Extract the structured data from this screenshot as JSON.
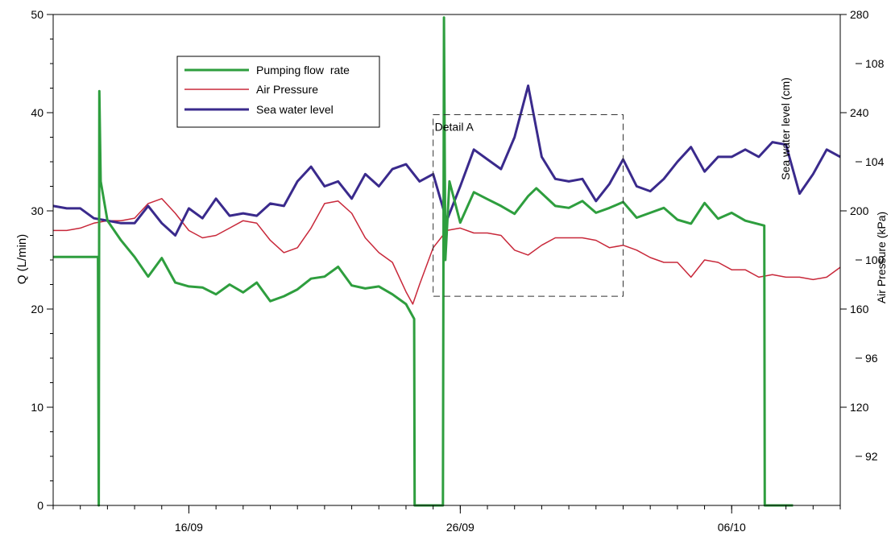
{
  "chart_data": {
    "type": "line",
    "x_axis": {
      "type": "date",
      "range": [
        "2010-09-11",
        "2010-10-10"
      ],
      "tick_labels": [
        {
          "date": "2010-09-16",
          "label": "16/09"
        },
        {
          "date": "2010-09-26",
          "label": "26/09"
        },
        {
          "date": "2010-10-06",
          "label": "06/10"
        }
      ],
      "minor_ticks": "daily"
    },
    "y_left": {
      "label": "Q (L/min)",
      "range": [
        0,
        50
      ],
      "ticks": [
        0,
        10,
        20,
        30,
        40,
        50
      ]
    },
    "y_right_inner": {
      "label": "Sea water level (cm)",
      "range": [
        80,
        280
      ],
      "ticks": [
        120,
        160,
        200,
        240,
        280
      ]
    },
    "y_right_outer": {
      "label": "Air Pressure (kPa)",
      "range": [
        90,
        110
      ],
      "ticks": [
        92,
        96,
        100,
        104,
        108
      ]
    },
    "legend": {
      "position": "top-left"
    },
    "annotation": {
      "label": "Detail A",
      "x_range": [
        "2010-09-25",
        "2010-10-02"
      ],
      "y_range_left": [
        21.3,
        39.8
      ]
    },
    "series": [
      {
        "name": "Pumping flow  rate",
        "axis": "y_left",
        "color": "#2e9e3e",
        "points": [
          [
            "2010-09-11 00:00",
            25.3
          ],
          [
            "2010-09-12 15:36",
            25.3
          ],
          [
            "2010-09-12 16:19",
            0
          ],
          [
            "2010-09-12 16:48",
            42.2
          ],
          [
            "2010-09-12 18:00",
            33.0
          ],
          [
            "2010-09-13 00:00",
            29.0
          ],
          [
            "2010-09-13 12:00",
            27.0
          ],
          [
            "2010-09-14 00:00",
            25.3
          ],
          [
            "2010-09-14 12:00",
            23.3
          ],
          [
            "2010-09-15 00:00",
            25.2
          ],
          [
            "2010-09-15 12:00",
            22.7
          ],
          [
            "2010-09-16 00:00",
            22.3
          ],
          [
            "2010-09-16 12:00",
            22.2
          ],
          [
            "2010-09-17 00:00",
            21.5
          ],
          [
            "2010-09-17 12:00",
            22.5
          ],
          [
            "2010-09-18 00:00",
            21.7
          ],
          [
            "2010-09-18 12:00",
            22.7
          ],
          [
            "2010-09-19 00:00",
            20.8
          ],
          [
            "2010-09-19 12:00",
            21.3
          ],
          [
            "2010-09-20 00:00",
            22.0
          ],
          [
            "2010-09-20 12:00",
            23.1
          ],
          [
            "2010-09-21 00:00",
            23.3
          ],
          [
            "2010-09-21 12:00",
            24.3
          ],
          [
            "2010-09-22 00:00",
            22.4
          ],
          [
            "2010-09-22 12:00",
            22.1
          ],
          [
            "2010-09-23 00:00",
            22.3
          ],
          [
            "2010-09-23 12:00",
            21.5
          ],
          [
            "2010-09-24 00:00",
            20.5
          ],
          [
            "2010-09-24 07:12",
            19.0
          ],
          [
            "2010-09-24 07:40",
            0
          ],
          [
            "2010-09-25 08:38",
            0
          ],
          [
            "2010-09-25 09:36",
            49.7
          ],
          [
            "2010-09-25 10:48",
            25.0
          ],
          [
            "2010-09-25 14:24",
            33.0
          ],
          [
            "2010-09-26 00:00",
            28.8
          ],
          [
            "2010-09-26 12:00",
            31.9
          ],
          [
            "2010-09-27 00:00",
            31.2
          ],
          [
            "2010-09-27 12:00",
            30.5
          ],
          [
            "2010-09-28 00:00",
            29.7
          ],
          [
            "2010-09-28 12:00",
            31.5
          ],
          [
            "2010-09-28 19:12",
            32.3
          ],
          [
            "2010-09-29 12:00",
            30.5
          ],
          [
            "2010-09-30 00:00",
            30.3
          ],
          [
            "2010-09-30 12:00",
            31.0
          ],
          [
            "2010-10-01 00:00",
            29.8
          ],
          [
            "2010-10-01 12:00",
            30.3
          ],
          [
            "2010-10-02 00:00",
            30.9
          ],
          [
            "2010-10-02 12:00",
            29.3
          ],
          [
            "2010-10-03 00:00",
            29.8
          ],
          [
            "2010-10-03 12:00",
            30.3
          ],
          [
            "2010-10-04 00:00",
            29.1
          ],
          [
            "2010-10-04 12:00",
            28.7
          ],
          [
            "2010-10-05 00:00",
            30.8
          ],
          [
            "2010-10-05 12:00",
            29.2
          ],
          [
            "2010-10-06 00:00",
            29.8
          ],
          [
            "2010-10-06 12:00",
            29.0
          ],
          [
            "2010-10-07 04:48",
            28.5
          ],
          [
            "2010-10-07 05:17",
            0
          ],
          [
            "2010-10-08 06:14",
            0
          ]
        ]
      },
      {
        "name": "Air Pressure",
        "axis": "y_right_outer",
        "color": "#c8283a",
        "points": [
          [
            "2010-09-11 00:00",
            101.2
          ],
          [
            "2010-09-11 12:00",
            101.2
          ],
          [
            "2010-09-12 00:00",
            101.3
          ],
          [
            "2010-09-12 12:00",
            101.5
          ],
          [
            "2010-09-13 00:00",
            101.6
          ],
          [
            "2010-09-13 12:00",
            101.6
          ],
          [
            "2010-09-14 00:00",
            101.7
          ],
          [
            "2010-09-14 12:00",
            102.3
          ],
          [
            "2010-09-15 00:00",
            102.5
          ],
          [
            "2010-09-15 12:00",
            101.9
          ],
          [
            "2010-09-16 00:00",
            101.2
          ],
          [
            "2010-09-16 12:00",
            100.9
          ],
          [
            "2010-09-17 00:00",
            101.0
          ],
          [
            "2010-09-17 12:00",
            101.3
          ],
          [
            "2010-09-18 00:00",
            101.6
          ],
          [
            "2010-09-18 12:00",
            101.5
          ],
          [
            "2010-09-19 00:00",
            100.8
          ],
          [
            "2010-09-19 12:00",
            100.3
          ],
          [
            "2010-09-20 00:00",
            100.5
          ],
          [
            "2010-09-20 12:00",
            101.3
          ],
          [
            "2010-09-21 00:00",
            102.3
          ],
          [
            "2010-09-21 12:00",
            102.4
          ],
          [
            "2010-09-22 00:00",
            101.9
          ],
          [
            "2010-09-22 12:00",
            100.9
          ],
          [
            "2010-09-23 00:00",
            100.3
          ],
          [
            "2010-09-23 12:00",
            99.9
          ],
          [
            "2010-09-24 00:00",
            98.7
          ],
          [
            "2010-09-24 06:00",
            98.2
          ],
          [
            "2010-09-24 12:00",
            99.0
          ],
          [
            "2010-09-25 00:00",
            100.5
          ],
          [
            "2010-09-25 12:00",
            101.2
          ],
          [
            "2010-09-26 00:00",
            101.3
          ],
          [
            "2010-09-26 12:00",
            101.1
          ],
          [
            "2010-09-27 00:00",
            101.1
          ],
          [
            "2010-09-27 12:00",
            101.0
          ],
          [
            "2010-09-28 00:00",
            100.4
          ],
          [
            "2010-09-28 12:00",
            100.2
          ],
          [
            "2010-09-29 00:00",
            100.6
          ],
          [
            "2010-09-29 12:00",
            100.9
          ],
          [
            "2010-09-30 00:00",
            100.9
          ],
          [
            "2010-09-30 12:00",
            100.9
          ],
          [
            "2010-10-01 00:00",
            100.8
          ],
          [
            "2010-10-01 12:00",
            100.5
          ],
          [
            "2010-10-02 00:00",
            100.6
          ],
          [
            "2010-10-02 12:00",
            100.4
          ],
          [
            "2010-10-03 00:00",
            100.1
          ],
          [
            "2010-10-03 12:00",
            99.9
          ],
          [
            "2010-10-04 00:00",
            99.9
          ],
          [
            "2010-10-04 12:00",
            99.3
          ],
          [
            "2010-10-05 00:00",
            100.0
          ],
          [
            "2010-10-05 12:00",
            99.9
          ],
          [
            "2010-10-06 00:00",
            99.6
          ],
          [
            "2010-10-06 12:00",
            99.6
          ],
          [
            "2010-10-07 00:00",
            99.3
          ],
          [
            "2010-10-07 12:00",
            99.4
          ],
          [
            "2010-10-08 00:00",
            99.3
          ],
          [
            "2010-10-08 12:00",
            99.3
          ],
          [
            "2010-10-09 00:00",
            99.2
          ],
          [
            "2010-10-09 12:00",
            99.3
          ],
          [
            "2010-10-10 00:00",
            99.7
          ]
        ]
      },
      {
        "name": "Sea water level",
        "axis": "y_right_inner",
        "color": "#3a2a8c",
        "points": [
          [
            "2010-09-11 00:00",
            202
          ],
          [
            "2010-09-11 12:00",
            201
          ],
          [
            "2010-09-12 00:00",
            201
          ],
          [
            "2010-09-12 12:00",
            197
          ],
          [
            "2010-09-13 00:00",
            196
          ],
          [
            "2010-09-13 12:00",
            195
          ],
          [
            "2010-09-14 00:00",
            195
          ],
          [
            "2010-09-14 12:00",
            202
          ],
          [
            "2010-09-15 00:00",
            195
          ],
          [
            "2010-09-15 12:00",
            190
          ],
          [
            "2010-09-16 00:00",
            201
          ],
          [
            "2010-09-16 12:00",
            197
          ],
          [
            "2010-09-17 00:00",
            205
          ],
          [
            "2010-09-17 12:00",
            198
          ],
          [
            "2010-09-18 00:00",
            199
          ],
          [
            "2010-09-18 12:00",
            198
          ],
          [
            "2010-09-19 00:00",
            203
          ],
          [
            "2010-09-19 12:00",
            202
          ],
          [
            "2010-09-20 00:00",
            212
          ],
          [
            "2010-09-20 12:00",
            218
          ],
          [
            "2010-09-21 00:00",
            210
          ],
          [
            "2010-09-21 12:00",
            212
          ],
          [
            "2010-09-22 00:00",
            205
          ],
          [
            "2010-09-22 12:00",
            215
          ],
          [
            "2010-09-23 00:00",
            210
          ],
          [
            "2010-09-23 12:00",
            217
          ],
          [
            "2010-09-24 00:00",
            219
          ],
          [
            "2010-09-24 12:00",
            212
          ],
          [
            "2010-09-25 00:00",
            215
          ],
          [
            "2010-09-25 12:00",
            196
          ],
          [
            "2010-09-26 00:00",
            210
          ],
          [
            "2010-09-26 12:00",
            225
          ],
          [
            "2010-09-27 00:00",
            221
          ],
          [
            "2010-09-27 12:00",
            217
          ],
          [
            "2010-09-28 00:00",
            230
          ],
          [
            "2010-09-28 12:00",
            251
          ],
          [
            "2010-09-29 00:00",
            222
          ],
          [
            "2010-09-29 12:00",
            213
          ],
          [
            "2010-09-30 00:00",
            212
          ],
          [
            "2010-09-30 12:00",
            213
          ],
          [
            "2010-10-01 00:00",
            204
          ],
          [
            "2010-10-01 12:00",
            211
          ],
          [
            "2010-10-02 00:00",
            221
          ],
          [
            "2010-10-02 12:00",
            210
          ],
          [
            "2010-10-03 00:00",
            208
          ],
          [
            "2010-10-03 12:00",
            213
          ],
          [
            "2010-10-04 00:00",
            220
          ],
          [
            "2010-10-04 12:00",
            226
          ],
          [
            "2010-10-05 00:00",
            216
          ],
          [
            "2010-10-05 12:00",
            222
          ],
          [
            "2010-10-06 00:00",
            222
          ],
          [
            "2010-10-06 12:00",
            225
          ],
          [
            "2010-10-07 00:00",
            222
          ],
          [
            "2010-10-07 12:00",
            228
          ],
          [
            "2010-10-08 00:00",
            227
          ],
          [
            "2010-10-08 12:00",
            207
          ],
          [
            "2010-10-09 00:00",
            215
          ],
          [
            "2010-10-09 12:00",
            225
          ],
          [
            "2010-10-10 00:00",
            222
          ]
        ]
      }
    ]
  }
}
